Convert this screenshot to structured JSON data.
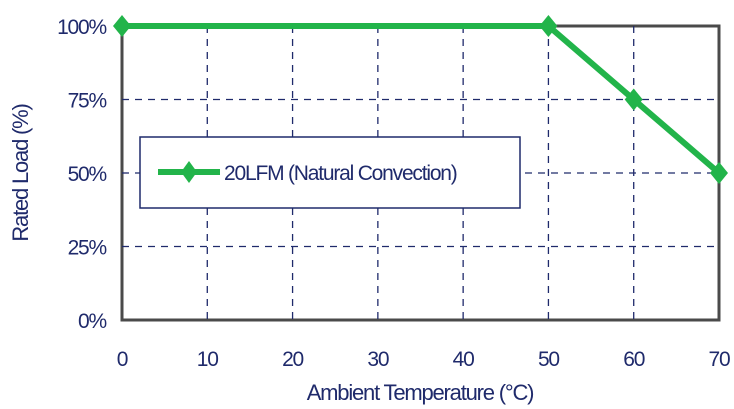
{
  "chart_data": {
    "type": "line",
    "title": "",
    "xlabel": "Ambient Temperature (°C)",
    "ylabel": "Rated Load (%)",
    "xlim": [
      0,
      70
    ],
    "ylim": [
      0,
      100
    ],
    "x_ticks": [
      "0",
      "10",
      "20",
      "30",
      "40",
      "50",
      "60",
      "70"
    ],
    "y_ticks": [
      "0%",
      "25%",
      "50%",
      "75%",
      "100%"
    ],
    "grid": "dashed",
    "legend_position": "middle-left",
    "series": [
      {
        "name": "20LFM (Natural Convection)",
        "color": "#22b44a",
        "marker": "diamond",
        "x": [
          0,
          50,
          60,
          70
        ],
        "y": [
          100,
          100,
          75,
          50
        ]
      }
    ]
  }
}
